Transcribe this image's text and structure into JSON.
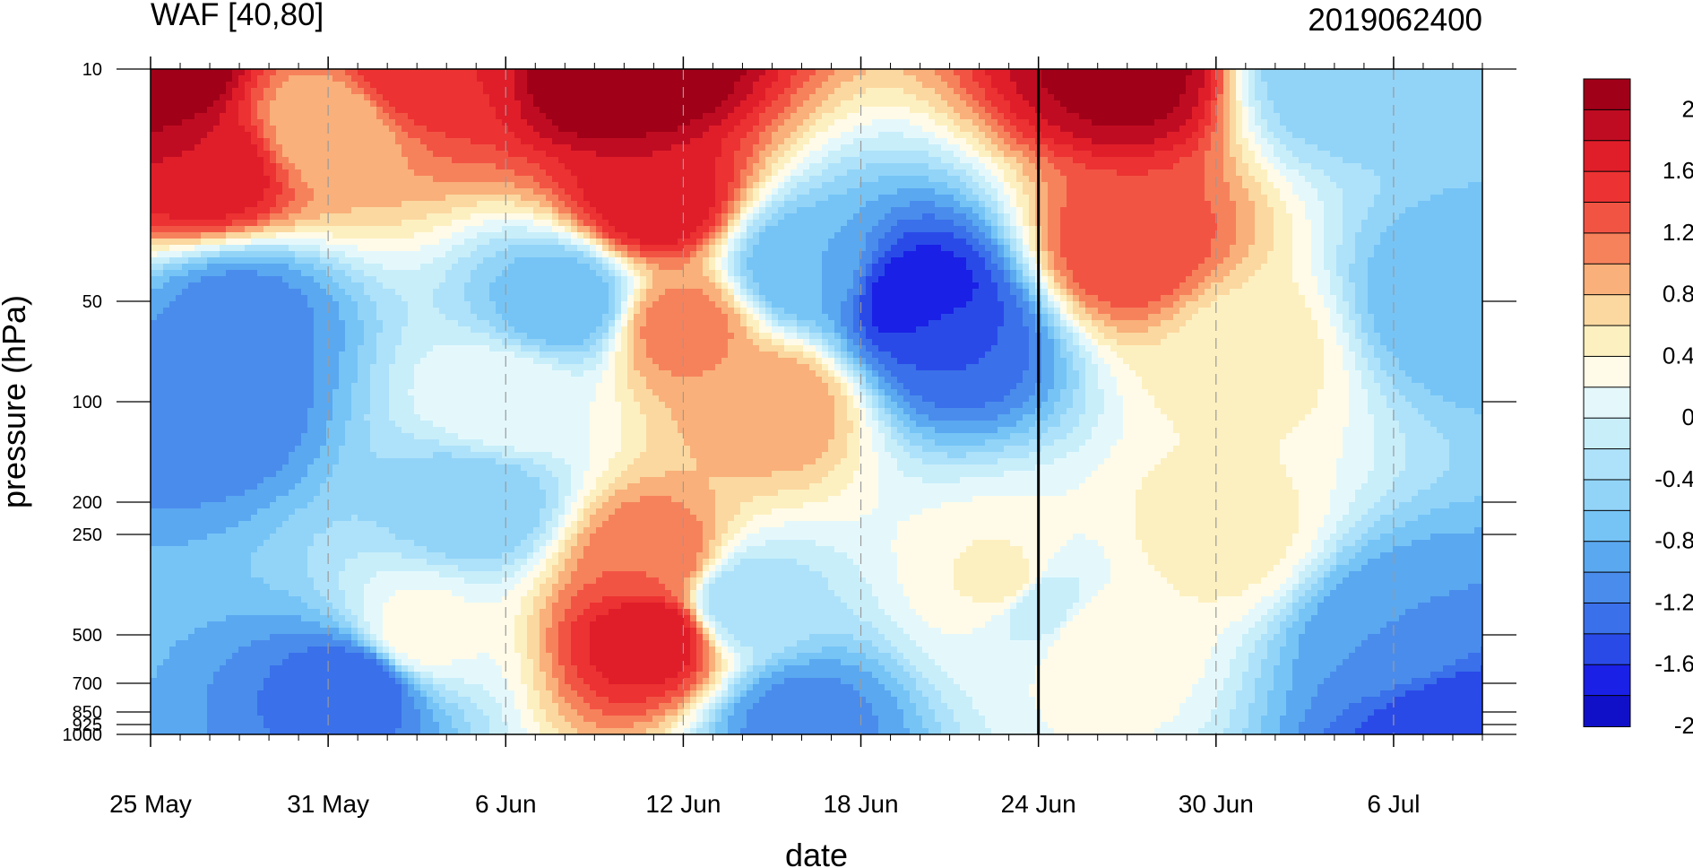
{
  "chart_data": {
    "type": "heatmap",
    "title": "WAF [40,80]",
    "subtitle_right": "2019062400",
    "xlabel": "date",
    "ylabel": "pressure (hPa)",
    "x_ticks": [
      "25 May",
      "31 May",
      "6 Jun",
      "12 Jun",
      "18 Jun",
      "24 Jun",
      "30 Jun",
      "6 Jul"
    ],
    "x_range": [
      "25 May",
      "9 Jul"
    ],
    "y_ticks": [
      10,
      50,
      100,
      200,
      250,
      500,
      700,
      850,
      925,
      1000
    ],
    "y_tick_labels": [
      "10",
      "50",
      "100",
      "200",
      "250",
      "500",
      "700",
      "850",
      "925",
      "1000"
    ],
    "y_scale": "pressure (log-like, reversed)",
    "ylim": [
      1000,
      10
    ],
    "reference_line": "24 Jun",
    "grid": "dashed vertical lines at date ticks",
    "colorbar": {
      "levels": [
        -2.2,
        -2,
        -1.8,
        -1.6,
        -1.4,
        -1.2,
        -1,
        -0.8,
        -0.6,
        -0.4,
        -0.2,
        0,
        0.2,
        0.4,
        0.6,
        0.8,
        1,
        1.2,
        1.4,
        1.6,
        1.8,
        2,
        2.2
      ],
      "labels": [
        "2",
        "1.6",
        "1.2",
        "0.8",
        "0.4",
        "0",
        "-0.4",
        "-0.8",
        "-1.2",
        "-1.6",
        "-2"
      ],
      "colors": [
        "#1010c8",
        "#1a20e6",
        "#2a4ae8",
        "#3a70ea",
        "#4a8cec",
        "#5aa8f0",
        "#76c4f6",
        "#92d4f8",
        "#aee2fa",
        "#c8eefa",
        "#e4f8fc",
        "#fffbe8",
        "#fdf0c0",
        "#fbd8a0",
        "#f9b07a",
        "#f6825c",
        "#f25444",
        "#ec3232",
        "#e01e2a",
        "#c00c22",
        "#a00018"
      ]
    },
    "fields": [
      {
        "x": "25 May",
        "p": 10,
        "value": 2.2
      },
      {
        "x": "27 May",
        "p": 20,
        "value": 1.6
      },
      {
        "x": "3 Jun",
        "p": 10,
        "value": 1.4
      },
      {
        "x": "31 May",
        "p": 15,
        "value": 0.6
      },
      {
        "x": "10 Jun",
        "p": 10,
        "value": 2.2
      },
      {
        "x": "11 Jun",
        "p": 25,
        "value": 1.6
      },
      {
        "x": "12 Jun",
        "p": 60,
        "value": 0.9
      },
      {
        "x": "15 Jun",
        "p": 100,
        "value": 0.8
      },
      {
        "x": "27 Jun",
        "p": 10,
        "value": 1.9
      },
      {
        "x": "27 Jun",
        "p": 35,
        "value": 1.2
      },
      {
        "x": "27 May",
        "p": 100,
        "value": -1.4
      },
      {
        "x": "28 May",
        "p": 55,
        "value": -1.3
      },
      {
        "x": "1 Jun",
        "p": 700,
        "value": -1.6
      },
      {
        "x": "20 Jun",
        "p": 50,
        "value": -2.0
      },
      {
        "x": "21 Jun",
        "p": 65,
        "value": -1.6
      },
      {
        "x": "16 Jun",
        "p": 40,
        "value": -1.0
      },
      {
        "x": "11 Jun",
        "p": 500,
        "value": 1.6
      },
      {
        "x": "11 Jun",
        "p": 300,
        "value": 1.0
      },
      {
        "x": "8 Jul",
        "p": 50,
        "value": -1.0
      },
      {
        "x": "8 Jul",
        "p": 950,
        "value": -1.8
      },
      {
        "x": "6 Jul",
        "p": 500,
        "value": -1.2
      },
      {
        "x": "1 Jul",
        "p": 70,
        "value": 0.3
      },
      {
        "x": "30 Jun",
        "p": 250,
        "value": 0.3
      },
      {
        "x": "23 Jun",
        "p": 350,
        "value": 0.3
      },
      {
        "x": "26 Jun",
        "p": 500,
        "value": 0.2
      },
      {
        "x": "5 Jun",
        "p": 200,
        "value": -0.8
      },
      {
        "x": "16 Jun",
        "p": 900,
        "value": -1.3
      },
      {
        "x": "8 Jun",
        "p": 50,
        "value": -1.0
      },
      {
        "x": "6 Jun",
        "p": 100,
        "value": 0.0
      },
      {
        "x": "14 Jun",
        "p": 400,
        "value": -0.6
      },
      {
        "x": "4 Jul",
        "p": 10,
        "value": -0.8
      },
      {
        "x": "24 Jun",
        "p": 400,
        "value": -0.4
      },
      {
        "x": "3 Jun",
        "p": 500,
        "value": 0.1
      }
    ]
  }
}
